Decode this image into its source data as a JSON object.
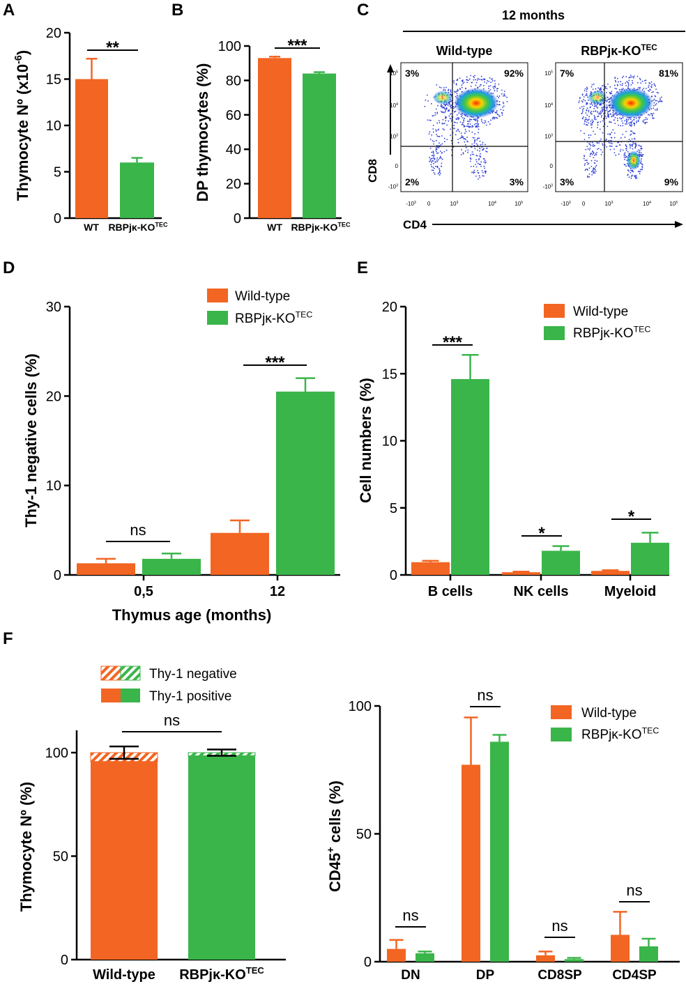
{
  "colors": {
    "wt": "#F26522",
    "ko": "#3AB54A",
    "axis": "#000000"
  },
  "panel_letters": {
    "A": "A",
    "B": "B",
    "C": "C",
    "D": "D",
    "E": "E",
    "F": "F"
  },
  "chart_data": [
    {
      "panel": "A",
      "type": "bar",
      "categories": [
        "WT",
        "RBPjκ-KO"
      ],
      "category_superscripts": [
        "",
        "TEC"
      ],
      "values": [
        15.0,
        6.0
      ],
      "errors": [
        2.2,
        0.5
      ],
      "ylabel": "Thymocyte Nº (x10",
      "ylabel_sup": "-6",
      "ylabel_end": ")",
      "ylim": [
        0,
        20
      ],
      "yticks": [
        0,
        5,
        10,
        15,
        20
      ],
      "significance": "**"
    },
    {
      "panel": "B",
      "type": "bar",
      "categories": [
        "WT",
        "RBPjκ-KO"
      ],
      "category_superscripts": [
        "",
        "TEC"
      ],
      "values": [
        93,
        84
      ],
      "errors": [
        0.8,
        0.8
      ],
      "ylabel": "DP thymocytes (%)",
      "ylim": [
        0,
        100
      ],
      "yticks": [
        0,
        20,
        40,
        60,
        80,
        100
      ],
      "significance": "***"
    },
    {
      "panel": "C",
      "type": "scatter",
      "title": "12 months",
      "xlabel": "CD4",
      "ylabel": "CD8",
      "plots": [
        {
          "name": "Wild-type",
          "sup": "",
          "quadrants": {
            "top_left": "3%",
            "top_right": "92%",
            "bottom_left": "2%",
            "bottom_right": "3%"
          }
        },
        {
          "name": "RBPjκ-KO",
          "sup": "TEC",
          "quadrants": {
            "top_left": "7%",
            "top_right": "81%",
            "bottom_left": "3%",
            "bottom_right": "9%"
          }
        }
      ],
      "xtick_labels": [
        "-10",
        "0",
        "10",
        "10",
        "10"
      ],
      "xtick_sups": [
        "3",
        "",
        "3",
        "4",
        "5"
      ],
      "ytick_labels": [
        "10",
        "10",
        "10",
        "0",
        "-10"
      ],
      "ytick_sups": [
        "5",
        "4",
        "3",
        "",
        "3"
      ]
    },
    {
      "panel": "D",
      "type": "bar",
      "categories": [
        "0,5",
        "12"
      ],
      "series": [
        {
          "name": "Wild-type",
          "values": [
            1.3,
            4.7
          ],
          "errors": [
            0.5,
            1.4
          ]
        },
        {
          "name": "RBPjκ-KO",
          "sup": "TEC",
          "values": [
            1.8,
            20.5
          ],
          "errors": [
            0.6,
            1.5
          ]
        }
      ],
      "xlabel": "Thymus age (months)",
      "ylabel": "Thy-1 negative cells (%)",
      "ylim": [
        0,
        30
      ],
      "yticks": [
        0,
        10,
        20,
        30
      ],
      "significance": [
        "ns",
        "***"
      ]
    },
    {
      "panel": "E",
      "type": "bar",
      "categories": [
        "B cells",
        "NK cells",
        "Myeloid"
      ],
      "series": [
        {
          "name": "Wild-type",
          "values": [
            0.95,
            0.2,
            0.3
          ],
          "errors": [
            0.1,
            0.05,
            0.05
          ]
        },
        {
          "name": "RBPjκ-KO",
          "sup": "TEC",
          "values": [
            14.6,
            1.8,
            2.4
          ],
          "errors": [
            1.8,
            0.35,
            0.75
          ]
        }
      ],
      "ylabel": "Cell numbers (%)",
      "ylim": [
        0,
        20
      ],
      "yticks": [
        0,
        5,
        10,
        15,
        20
      ],
      "significance": [
        "***",
        "*",
        "*"
      ]
    },
    {
      "panel": "F-left",
      "type": "bar",
      "stacked": true,
      "categories": [
        "Wild-type",
        "RBPjκ-KO"
      ],
      "category_superscripts": [
        "",
        "TEC"
      ],
      "series": [
        {
          "name": "Thy-1 positive",
          "values": [
            95.7,
            98.5
          ]
        },
        {
          "name": "Thy-1 negative",
          "values": [
            4.3,
            1.5
          ]
        }
      ],
      "errors": [
        3.0,
        1.5
      ],
      "ylabel": "Thymocyte Nº (%)",
      "ylim": [
        0,
        110
      ],
      "yticks": [
        0,
        50,
        100
      ],
      "significance": "ns"
    },
    {
      "panel": "F-right",
      "type": "bar",
      "categories": [
        "DN",
        "DP",
        "CD8SP",
        "CD4SP"
      ],
      "series": [
        {
          "name": "Wild-type",
          "values": [
            5,
            77,
            2.5,
            10.5
          ],
          "errors": [
            3.5,
            18.5,
            1.5,
            9.0
          ]
        },
        {
          "name": "RBPjκ-KO",
          "sup": "TEC",
          "values": [
            3.3,
            86,
            1.0,
            6.0
          ],
          "errors": [
            0.7,
            2.7,
            0.5,
            3.0
          ]
        }
      ],
      "ylabel": "CD45",
      "ylabel_sup": "+",
      "ylabel_end": " cells (%)",
      "ylim": [
        0,
        100
      ],
      "yticks": [
        0,
        50,
        100
      ],
      "significance": [
        "ns",
        "ns",
        "ns",
        "ns"
      ]
    }
  ]
}
